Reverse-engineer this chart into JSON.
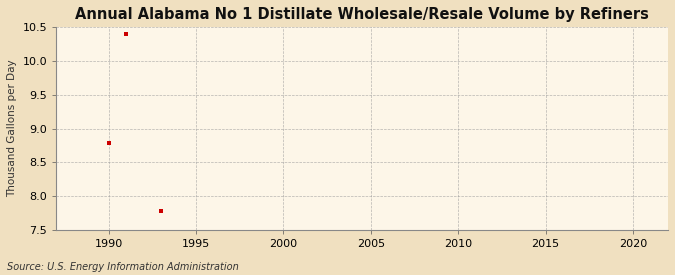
{
  "title": "Annual Alabama No 1 Distillate Wholesale/Resale Volume by Refiners",
  "ylabel": "Thousand Gallons per Day",
  "source": "Source: U.S. Energy Information Administration",
  "x_data": [
    1990,
    1991,
    1993
  ],
  "y_data": [
    8.78,
    10.4,
    7.78
  ],
  "marker_color": "#cc0000",
  "marker": "s",
  "marker_size": 3.5,
  "xlim": [
    1987,
    2022
  ],
  "ylim": [
    7.5,
    10.5
  ],
  "yticks": [
    7.5,
    8.0,
    8.5,
    9.0,
    9.5,
    10.0,
    10.5
  ],
  "xticks": [
    1990,
    1995,
    2000,
    2005,
    2010,
    2015,
    2020
  ],
  "background_color": "#f0e0c0",
  "plot_bg_color": "#fdf6e8",
  "grid_color": "#999999",
  "title_fontsize": 10.5,
  "label_fontsize": 7.5,
  "tick_fontsize": 8,
  "source_fontsize": 7
}
